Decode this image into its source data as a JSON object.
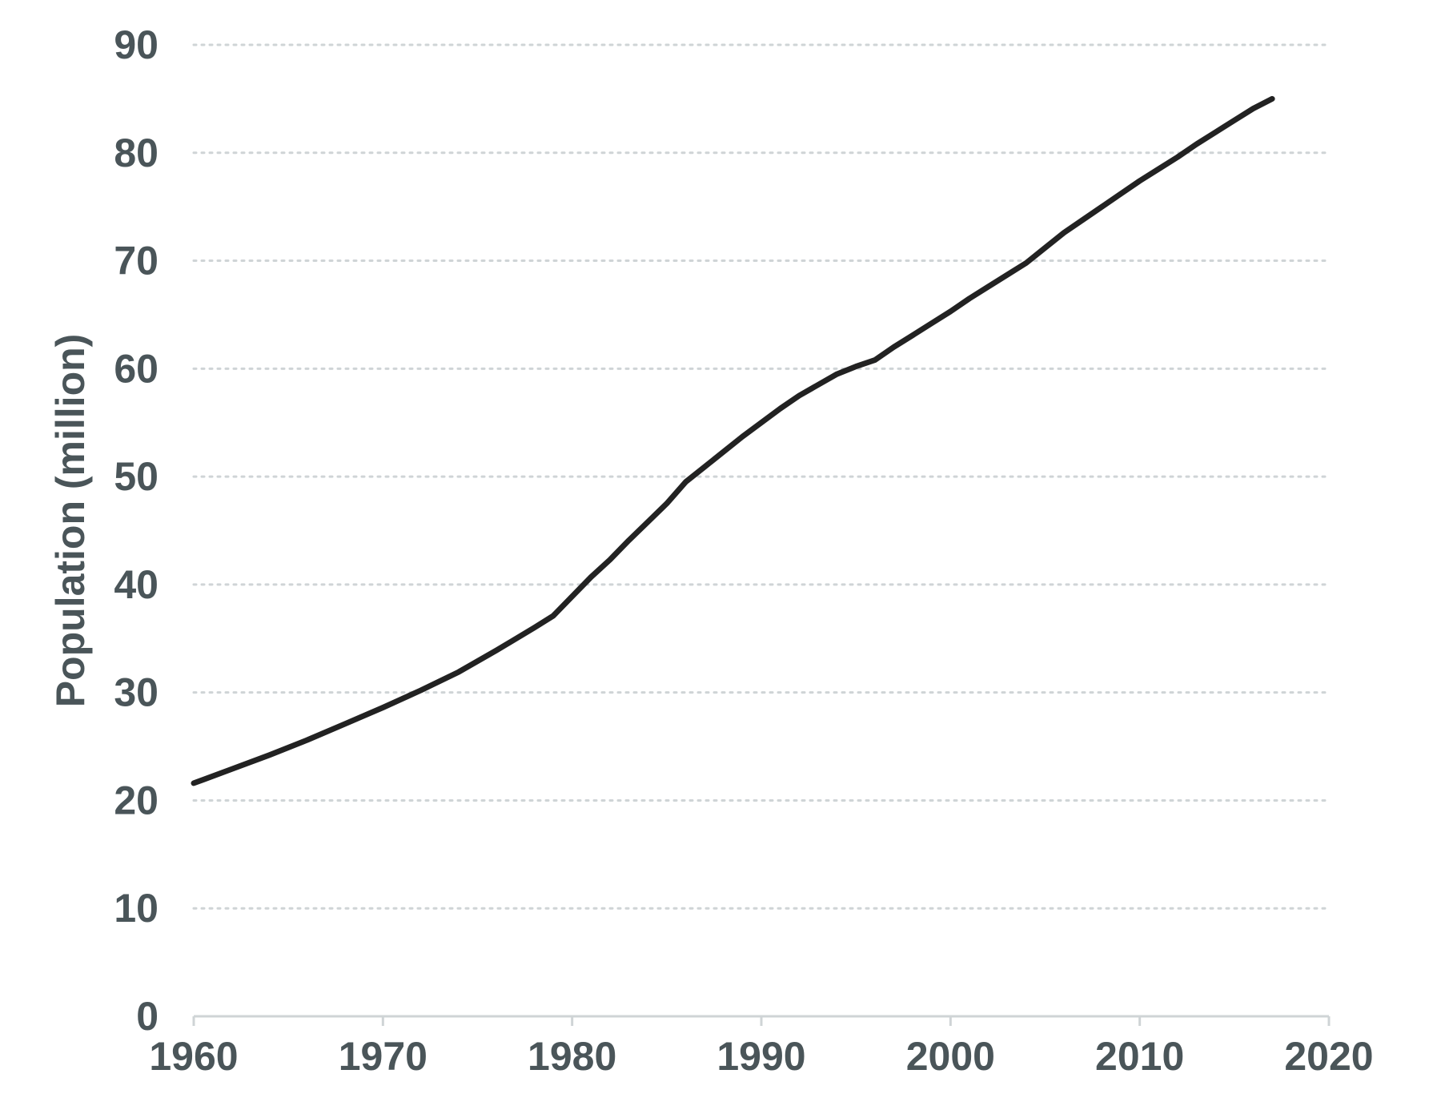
{
  "chart_data": {
    "type": "line",
    "title": "",
    "xlabel": "",
    "ylabel": "Population (million)",
    "xlim": [
      1960,
      2020
    ],
    "ylim": [
      0,
      90
    ],
    "x_ticks": [
      "1960",
      "1970",
      "1980",
      "1990",
      "2000",
      "2010",
      "2020"
    ],
    "y_ticks": [
      "0",
      "10",
      "20",
      "30",
      "40",
      "50",
      "60",
      "70",
      "80",
      "90"
    ],
    "grid": "horizontal dotted",
    "legend": "none",
    "line_color": "#222222",
    "grid_color": "#cfd4d6",
    "axis_color": "#cfd4d6",
    "label_color": "#4a5559",
    "series": [
      {
        "x": [
          1960,
          1962,
          1964,
          1966,
          1968,
          1970,
          1972,
          1974,
          1976,
          1978,
          1979,
          1980,
          1981,
          1982,
          1983,
          1984,
          1985,
          1986,
          1987,
          1988,
          1989,
          1990,
          1991,
          1992,
          1993,
          1994,
          1995,
          1996,
          1997,
          1998,
          1999,
          2000,
          2001,
          2002,
          2003,
          2004,
          2005,
          2006,
          2007,
          2008,
          2009,
          2010,
          2011,
          2012,
          2013,
          2014,
          2015,
          2016,
          2017
        ],
        "values": [
          21.6,
          22.9,
          24.2,
          25.6,
          27.1,
          28.6,
          30.2,
          31.9,
          33.9,
          36.0,
          37.1,
          38.9,
          40.7,
          42.3,
          44.1,
          45.8,
          47.5,
          49.5,
          50.9,
          52.3,
          53.7,
          55.0,
          56.3,
          57.5,
          58.5,
          59.5,
          60.2,
          60.8,
          62.0,
          63.1,
          64.2,
          65.3,
          66.5,
          67.6,
          68.7,
          69.8,
          71.2,
          72.6,
          73.8,
          75.0,
          76.2,
          77.4,
          78.5,
          79.6,
          80.8,
          81.9,
          83.0,
          84.1,
          85.0
        ]
      }
    ]
  }
}
